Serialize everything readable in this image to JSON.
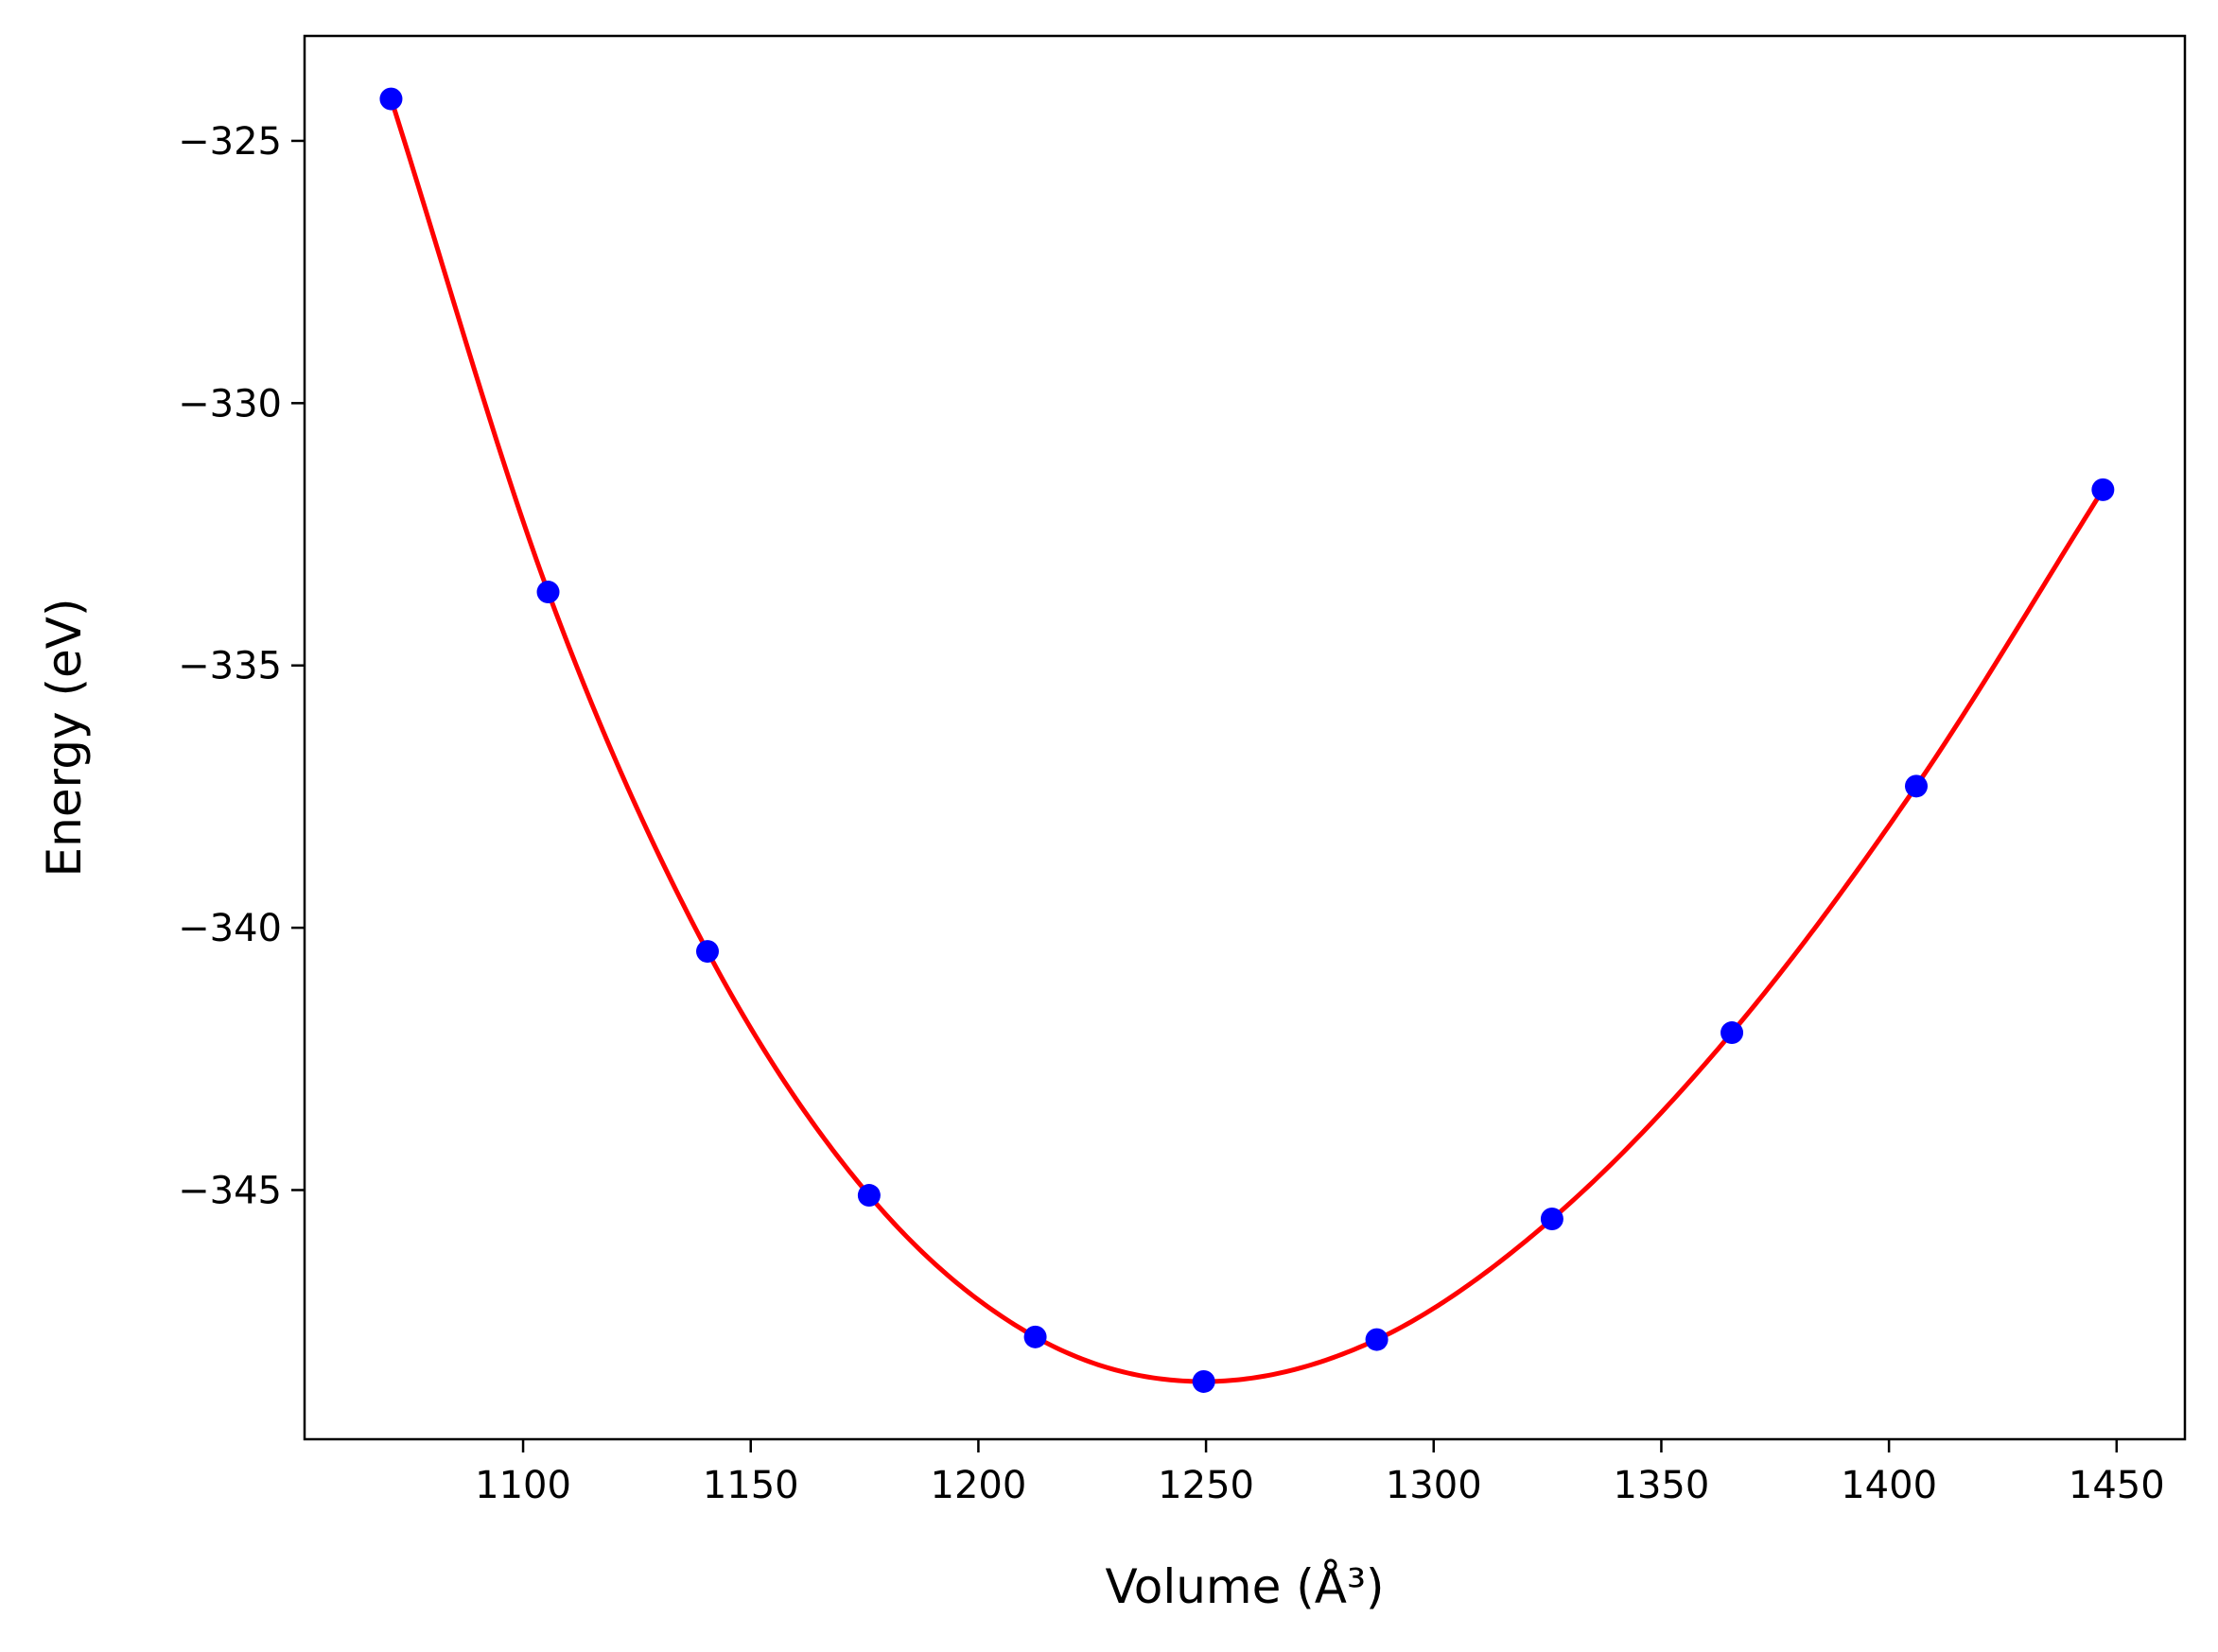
{
  "chart_data": {
    "type": "scatter",
    "xlabel": "Volume (Å³)",
    "ylabel": "Energy (eV)",
    "xlim": [
      1052,
      1465
    ],
    "ylim": [
      -349.75,
      -323.0
    ],
    "x_ticks": [
      1100,
      1150,
      1200,
      1250,
      1300,
      1350,
      1400,
      1450
    ],
    "y_ticks": [
      -325,
      -330,
      -335,
      -340,
      -345
    ],
    "x_tick_labels": [
      "1100",
      "1150",
      "1200",
      "1250",
      "1300",
      "1350",
      "1400",
      "1450"
    ],
    "y_tick_labels": [
      "−325",
      "−330",
      "−335",
      "−340",
      "−345"
    ],
    "series": [
      {
        "kind": "points",
        "color": "#0000ff",
        "x": [
          1071,
          1105.5,
          1140.5,
          1176,
          1212.5,
          1249.5,
          1287.5,
          1326,
          1365.5,
          1406,
          1447
        ],
        "y": [
          -324.2,
          -333.6,
          -340.45,
          -345.1,
          -347.8,
          -348.65,
          -347.85,
          -345.55,
          -342.0,
          -337.3,
          -331.65
        ]
      },
      {
        "kind": "fit-curve",
        "color": "#ff0000",
        "x": [
          1071,
          1105.5,
          1140.5,
          1176,
          1212.5,
          1249.5,
          1287.5,
          1326,
          1365.5,
          1406,
          1447
        ],
        "y": [
          -324.2,
          -333.6,
          -340.45,
          -345.1,
          -347.8,
          -348.65,
          -347.85,
          -345.55,
          -342.0,
          -337.3,
          -331.65
        ]
      }
    ],
    "grid": false,
    "legend": "none"
  }
}
